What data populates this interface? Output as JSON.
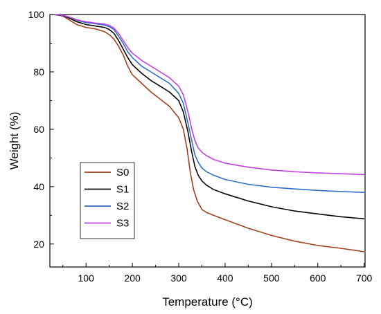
{
  "chart_data": {
    "type": "line",
    "xlabel": "Temperature (°C)",
    "ylabel": "Weight (%)",
    "xlim": [
      22,
      702
    ],
    "ylim": [
      12,
      100
    ],
    "x_ticks": [
      100,
      200,
      300,
      400,
      500,
      600,
      700
    ],
    "y_ticks": [
      20,
      40,
      60,
      80,
      100
    ],
    "grid": false,
    "legend_position": "lower-left",
    "series": [
      {
        "name": "S0",
        "color": "#a0401c",
        "x": [
          30,
          50,
          60,
          70,
          80,
          90,
          100,
          120,
          140,
          150,
          160,
          170,
          180,
          190,
          200,
          220,
          240,
          260,
          280,
          300,
          310,
          318,
          325,
          332,
          340,
          350,
          360,
          375,
          400,
          450,
          500,
          550,
          600,
          650,
          700
        ],
        "y": [
          100,
          99.5,
          98.5,
          97.5,
          96.5,
          96,
          95.5,
          95,
          94,
          93,
          91.5,
          89,
          86,
          82,
          79,
          76,
          73,
          70.5,
          68,
          64,
          60,
          53,
          45,
          39,
          35,
          32,
          31,
          30,
          28.5,
          25.5,
          23,
          21,
          19.5,
          18.5,
          17.3
        ]
      },
      {
        "name": "S1",
        "color": "#000000",
        "x": [
          30,
          50,
          60,
          70,
          80,
          90,
          100,
          120,
          140,
          150,
          160,
          170,
          180,
          190,
          200,
          220,
          240,
          260,
          280,
          300,
          310,
          320,
          328,
          335,
          342,
          350,
          360,
          375,
          400,
          450,
          500,
          550,
          600,
          650,
          700
        ],
        "y": [
          100,
          99.6,
          99,
          98.3,
          97.5,
          97,
          96.5,
          96,
          95.5,
          94.8,
          93.5,
          91,
          88,
          85,
          82.5,
          79.5,
          77,
          75,
          73,
          70,
          66,
          59,
          52,
          47,
          44,
          42,
          40.5,
          39,
          37.5,
          35,
          33,
          31.5,
          30.5,
          29.5,
          28.8
        ]
      },
      {
        "name": "S2",
        "color": "#2f6cc8",
        "x": [
          30,
          50,
          60,
          70,
          80,
          90,
          100,
          120,
          140,
          150,
          160,
          170,
          180,
          190,
          200,
          220,
          240,
          260,
          280,
          300,
          310,
          320,
          328,
          335,
          342,
          350,
          360,
          375,
          400,
          450,
          500,
          550,
          600,
          650,
          700
        ],
        "y": [
          100,
          99.7,
          99.2,
          98.7,
          98,
          97.6,
          97.2,
          96.8,
          96.3,
          95.8,
          94.8,
          92.5,
          90,
          87,
          85,
          82,
          80,
          78,
          76,
          72.5,
          69,
          62,
          56,
          51,
          48.5,
          46.5,
          45.2,
          44,
          42.5,
          40.8,
          39.8,
          39.2,
          38.7,
          38.3,
          38
        ]
      },
      {
        "name": "S3",
        "color": "#c040e0",
        "x": [
          30,
          50,
          60,
          70,
          80,
          90,
          100,
          120,
          140,
          150,
          160,
          170,
          180,
          190,
          200,
          220,
          240,
          260,
          280,
          300,
          310,
          320,
          328,
          335,
          342,
          350,
          360,
          375,
          400,
          450,
          500,
          550,
          600,
          650,
          700
        ],
        "y": [
          100,
          99.8,
          99.3,
          98.8,
          98.2,
          97.8,
          97.5,
          97,
          96.7,
          96.2,
          95.3,
          93.5,
          91,
          88.5,
          86.5,
          84,
          82,
          80,
          78,
          75,
          72,
          66,
          60,
          56,
          53.5,
          52,
          50.8,
          49.5,
          48.2,
          46.8,
          45.8,
          45.2,
          44.8,
          44.5,
          44.2
        ]
      }
    ]
  }
}
